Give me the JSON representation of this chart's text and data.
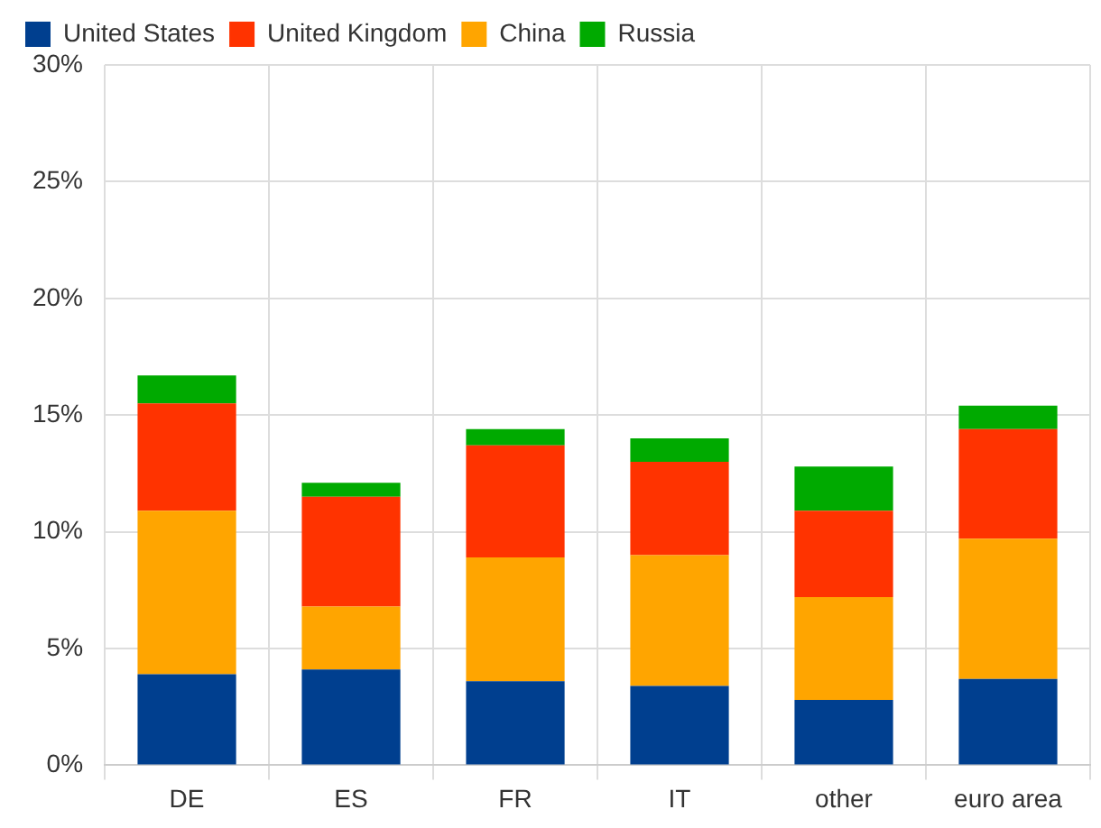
{
  "chart_data": {
    "type": "bar",
    "stacked": true,
    "categories": [
      "DE",
      "ES",
      "FR",
      "IT",
      "other",
      "euro area"
    ],
    "series": [
      {
        "name": "United States",
        "color": "#003f8f",
        "values": [
          3.9,
          4.1,
          3.6,
          3.4,
          2.8,
          3.7
        ]
      },
      {
        "name": "China",
        "color": "#ffa500",
        "values": [
          7.0,
          2.7,
          5.3,
          5.6,
          4.4,
          6.0
        ]
      },
      {
        "name": "United Kingdom",
        "color": "#ff3300",
        "values": [
          4.6,
          4.7,
          4.8,
          4.0,
          3.7,
          4.7
        ]
      },
      {
        "name": "Russia",
        "color": "#00aa00",
        "values": [
          1.2,
          0.6,
          0.7,
          1.0,
          1.9,
          1.0
        ]
      }
    ],
    "ylim": [
      0,
      30
    ],
    "yticks": [
      {
        "value": 0,
        "label": "0%"
      },
      {
        "value": 5,
        "label": "5%"
      },
      {
        "value": 10,
        "label": "10%"
      },
      {
        "value": 15,
        "label": "15%"
      },
      {
        "value": 20,
        "label": "20%"
      },
      {
        "value": 25,
        "label": "25%"
      },
      {
        "value": 30,
        "label": "30%"
      }
    ],
    "grid": true,
    "legend": "top left"
  }
}
